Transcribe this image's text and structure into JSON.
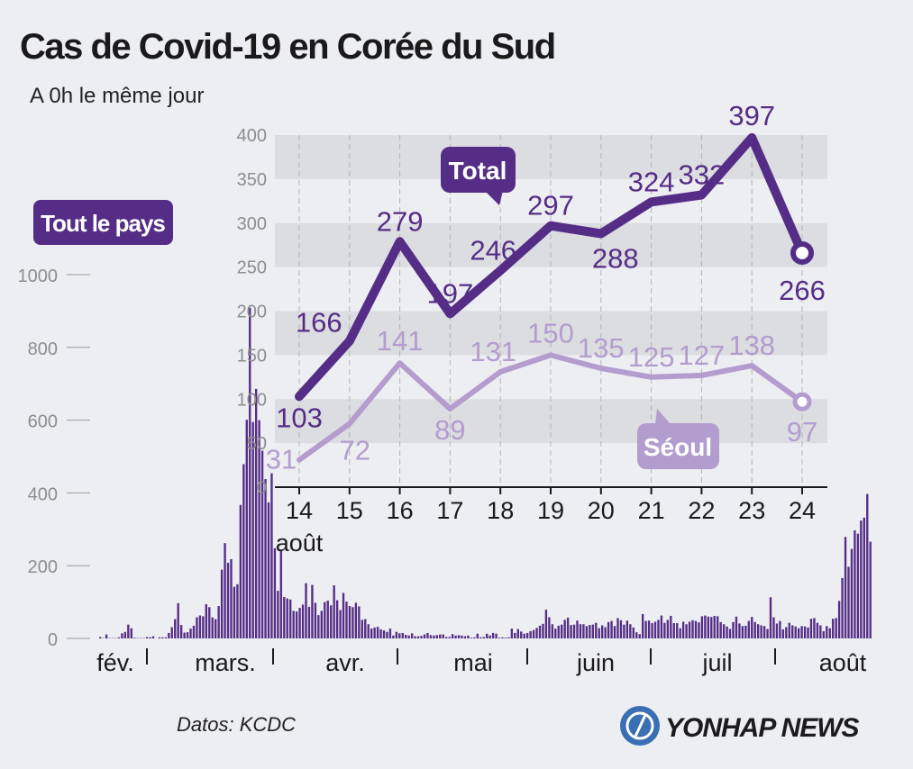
{
  "title": "Cas de Covid-19 en Corée du Sud",
  "subtitle": "A 0h le même jour",
  "source": "Datos: KCDC",
  "logo": "YONHAP NEWS",
  "colors": {
    "background": "#edeef2",
    "dark_purple": "#552d86",
    "light_purple": "#b39cce",
    "band": "#dcdde1",
    "axis_text": "#8d8d8d"
  },
  "chart_data": [
    {
      "type": "bar",
      "series_label": "Tout le pays",
      "ylim": [
        0,
        1000
      ],
      "yticks": [
        "0",
        "200",
        "400",
        "600",
        "800",
        "1000"
      ],
      "xtick_labels": [
        "fév.",
        "mars.",
        "avr.",
        "mai",
        "juin",
        "juil",
        "août"
      ],
      "values": [
        4,
        1,
        11,
        1,
        1,
        1,
        3,
        14,
        18,
        38,
        28,
        2,
        1,
        1,
        1,
        4,
        3,
        6,
        0,
        3,
        3,
        3,
        15,
        31,
        53,
        97,
        37,
        16,
        17,
        27,
        35,
        58,
        63,
        61,
        94,
        86,
        58,
        53,
        89,
        189,
        262,
        208,
        218,
        142,
        149,
        367,
        479,
        601,
        909,
        595,
        686,
        600,
        516,
        438,
        374,
        454,
        248,
        131,
        242,
        114,
        110,
        107,
        76,
        74,
        84,
        93,
        152,
        87,
        147,
        98,
        64,
        76,
        100,
        104,
        91,
        146,
        105,
        78,
        125,
        101,
        89,
        86,
        98,
        88,
        51,
        53,
        39,
        27,
        30,
        32,
        25,
        22,
        18,
        27,
        8,
        18,
        14,
        15,
        10,
        8,
        14,
        6,
        6,
        7,
        11,
        15,
        9,
        8,
        9,
        11,
        11,
        4,
        4,
        12,
        8,
        9,
        8,
        6,
        8,
        2,
        3,
        13,
        3,
        4,
        13,
        8,
        15,
        13,
        2,
        3,
        2,
        3,
        27,
        15,
        26,
        19,
        13,
        15,
        20,
        23,
        29,
        35,
        40,
        79,
        58,
        39,
        27,
        35,
        38,
        51,
        57,
        37,
        38,
        49,
        39,
        39,
        34,
        37,
        38,
        43,
        28,
        36,
        31,
        45,
        48,
        34,
        56,
        50,
        38,
        49,
        39,
        30,
        17,
        12,
        67,
        48,
        49,
        42,
        46,
        51,
        63,
        43,
        51,
        62,
        42,
        42,
        28,
        46,
        39,
        46,
        50,
        48,
        44,
        61,
        63,
        60,
        59,
        62,
        61,
        45,
        39,
        33,
        26,
        45,
        60,
        41,
        34,
        35,
        48,
        59,
        45,
        39,
        36,
        34,
        26,
        113,
        58,
        41,
        48,
        25,
        31,
        43,
        36,
        33,
        28,
        34,
        33,
        30,
        54,
        56,
        43,
        36,
        20,
        34,
        28,
        54,
        56,
        103,
        166,
        279,
        197,
        246,
        297,
        288,
        324,
        332,
        397,
        266
      ],
      "bar_total_note": "last 11 bars = 14-24 août"
    },
    {
      "type": "line",
      "x": [
        "14",
        "15",
        "16",
        "17",
        "18",
        "19",
        "20",
        "21",
        "22",
        "23",
        "24"
      ],
      "x_suffix": "août",
      "ylim": [
        0,
        400
      ],
      "yticks": [
        "0",
        "50",
        "100",
        "150",
        "200",
        "250",
        "300",
        "350",
        "400"
      ],
      "series": [
        {
          "name": "Total",
          "values": [
            103,
            166,
            279,
            197,
            246,
            297,
            288,
            324,
            332,
            397,
            266
          ]
        },
        {
          "name": "Séoul",
          "values": [
            31,
            72,
            141,
            89,
            131,
            150,
            135,
            125,
            127,
            138,
            97
          ]
        }
      ]
    }
  ]
}
